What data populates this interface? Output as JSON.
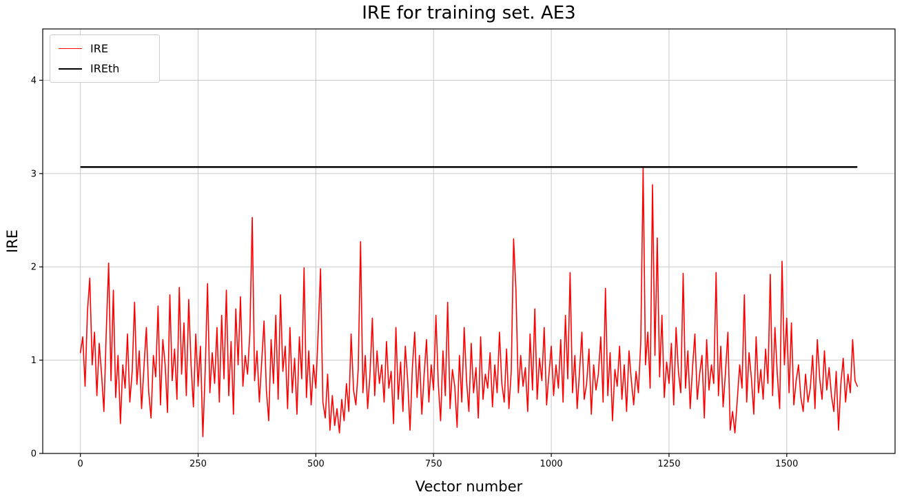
{
  "chart_data": {
    "type": "line",
    "title": "IRE for training set. AE3",
    "xlabel": "Vector number",
    "ylabel": "IRE",
    "xlim": [
      -80,
      1730
    ],
    "ylim": [
      0,
      4.55
    ],
    "xticks": [
      0,
      250,
      500,
      750,
      1000,
      1250,
      1500
    ],
    "yticks": [
      0,
      1,
      2,
      3,
      4
    ],
    "grid": true,
    "grid_color": "#c8c8c8",
    "axis_color": "#000000",
    "legend_position": "upper-left",
    "x_start": 0,
    "x_step": 5,
    "series": [
      {
        "name": "IRE",
        "color": "#ff0000",
        "line_width": 1.6,
        "values": [
          1.08,
          1.25,
          0.72,
          1.52,
          1.88,
          0.95,
          1.3,
          0.62,
          1.18,
          0.85,
          0.45,
          1.32,
          2.04,
          0.78,
          1.75,
          0.6,
          1.05,
          0.32,
          0.95,
          0.7,
          1.28,
          0.55,
          0.88,
          1.62,
          0.74,
          1.1,
          0.48,
          0.92,
          1.35,
          0.66,
          0.38,
          1.05,
          0.82,
          1.58,
          0.52,
          1.22,
          0.95,
          0.44,
          1.7,
          0.78,
          1.12,
          0.58,
          1.78,
          0.85,
          1.4,
          0.62,
          1.65,
          0.95,
          0.5,
          1.28,
          0.72,
          1.15,
          0.18,
          0.88,
          1.82,
          0.65,
          1.08,
          0.75,
          1.35,
          0.55,
          1.48,
          0.8,
          1.75,
          0.62,
          1.2,
          0.42,
          1.55,
          0.95,
          1.68,
          0.72,
          1.05,
          0.85,
          1.3,
          2.53,
          0.78,
          1.1,
          0.55,
          0.98,
          1.42,
          0.68,
          0.35,
          1.22,
          0.75,
          1.48,
          0.58,
          1.7,
          0.88,
          1.15,
          0.48,
          1.35,
          0.65,
          1.02,
          0.42,
          1.25,
          0.8,
          1.99,
          0.6,
          1.1,
          0.52,
          0.95,
          0.7,
          1.3,
          1.98,
          0.55,
          0.38,
          0.85,
          0.25,
          0.62,
          0.3,
          0.48,
          0.22,
          0.58,
          0.35,
          0.75,
          0.45,
          1.28,
          0.68,
          0.52,
          0.9,
          2.27,
          0.65,
          1.05,
          0.48,
          0.85,
          1.45,
          0.62,
          1.1,
          0.75,
          0.95,
          0.55,
          1.2,
          0.7,
          0.88,
          0.32,
          1.35,
          0.58,
          0.98,
          0.45,
          1.15,
          0.78,
          0.25,
          0.92,
          1.3,
          0.6,
          1.05,
          0.42,
          0.85,
          1.22,
          0.55,
          0.95,
          0.68,
          1.48,
          0.75,
          0.35,
          1.1,
          0.62,
          1.62,
          0.48,
          0.9,
          0.72,
          0.28,
          1.05,
          0.55,
          1.35,
          0.78,
          0.45,
          1.18,
          0.65,
          0.92,
          0.38,
          1.25,
          0.58,
          0.85,
          0.7,
          1.08,
          0.5,
          0.95,
          0.65,
          1.3,
          0.75,
          0.55,
          1.12,
          0.48,
          0.88,
          2.3,
          1.75,
          0.65,
          1.05,
          0.72,
          0.92,
          0.45,
          1.28,
          0.68,
          1.55,
          0.58,
          1.02,
          0.78,
          1.35,
          0.52,
          0.85,
          1.15,
          0.62,
          0.95,
          0.7,
          1.22,
          0.55,
          1.48,
          0.8,
          1.94,
          0.65,
          1.05,
          0.48,
          0.88,
          1.3,
          0.58,
          0.75,
          1.12,
          0.42,
          0.95,
          0.68,
          0.85,
          1.25,
          0.55,
          1.77,
          0.62,
          1.08,
          0.35,
          0.9,
          0.72,
          1.15,
          0.58,
          0.95,
          0.45,
          1.1,
          0.78,
          0.52,
          0.88,
          0.65,
          1.2,
          3.06,
          0.95,
          1.3,
          0.7,
          2.88,
          1.05,
          2.31,
          0.82,
          1.48,
          0.6,
          0.98,
          0.75,
          1.18,
          0.52,
          1.35,
          0.88,
          0.65,
          1.93,
          0.7,
          1.1,
          0.48,
          0.92,
          1.28,
          0.58,
          0.85,
          1.05,
          0.38,
          1.22,
          0.68,
          0.95,
          0.75,
          1.94,
          0.62,
          1.15,
          0.5,
          0.88,
          1.3,
          0.25,
          0.45,
          0.22,
          0.58,
          0.95,
          0.7,
          1.7,
          0.55,
          1.08,
          0.8,
          0.42,
          1.25,
          0.65,
          0.9,
          0.58,
          1.12,
          0.75,
          1.92,
          0.62,
          1.35,
          0.85,
          0.48,
          2.06,
          0.95,
          1.45,
          0.65,
          1.4,
          0.52,
          0.78,
          0.95,
          0.6,
          0.45,
          0.85,
          0.55,
          0.7,
          1.05,
          0.48,
          1.22,
          0.8,
          0.58,
          1.1,
          0.68,
          0.92,
          0.62,
          0.45,
          0.88,
          0.25,
          0.75,
          1.02,
          0.55,
          0.85,
          0.65,
          1.22,
          0.78,
          0.72
        ]
      },
      {
        "name": "IREth",
        "color": "#000000",
        "line_width": 2.5,
        "constant": 3.07,
        "x_range": [
          0,
          1650
        ]
      }
    ]
  }
}
